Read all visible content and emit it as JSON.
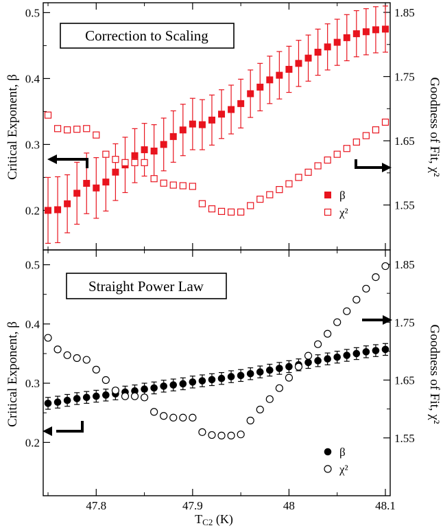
{
  "chart_data": [
    {
      "type": "scatter",
      "title": "Correction to Scaling",
      "xlabel": "",
      "ylabel": "Critical Exponent, β",
      "y2label": "Goodness of Fit, χ²",
      "xlim": [
        47.745,
        48.105
      ],
      "ylim": [
        0.14,
        0.515
      ],
      "y2lim": [
        1.48,
        1.865
      ],
      "yticks": [
        0.2,
        0.3,
        0.4,
        0.5
      ],
      "y2ticks": [
        1.55,
        1.65,
        1.75,
        1.85
      ],
      "y_ticklabels": [
        "0.2",
        "0.3",
        "0.4",
        "0.5"
      ],
      "y2_ticklabels": [
        "1.55",
        "1.65",
        "1.75",
        "1.85"
      ],
      "color": "#e8141e",
      "legend_position": "bottom-right",
      "legend": [
        "β",
        "χ²"
      ],
      "arrows": [
        "left",
        "right"
      ],
      "series": [
        {
          "name": "β",
          "axis": "left",
          "marker": "square-filled",
          "x": [
            47.75,
            47.76,
            47.77,
            47.78,
            47.79,
            47.8,
            47.81,
            47.82,
            47.83,
            47.84,
            47.85,
            47.86,
            47.87,
            47.88,
            47.89,
            47.9,
            47.91,
            47.92,
            47.93,
            47.94,
            47.95,
            47.96,
            47.97,
            47.98,
            47.99,
            48.0,
            48.01,
            48.02,
            48.03,
            48.04,
            48.05,
            48.06,
            48.07,
            48.08,
            48.09,
            48.1
          ],
          "y": [
            0.2,
            0.201,
            0.21,
            0.226,
            0.241,
            0.234,
            0.243,
            0.258,
            0.269,
            0.283,
            0.292,
            0.29,
            0.3,
            0.312,
            0.322,
            0.331,
            0.33,
            0.337,
            0.346,
            0.353,
            0.362,
            0.377,
            0.387,
            0.398,
            0.405,
            0.414,
            0.423,
            0.431,
            0.44,
            0.448,
            0.455,
            0.462,
            0.468,
            0.471,
            0.474,
            0.475
          ],
          "err": [
            0.05,
            0.05,
            0.044,
            0.047,
            0.046,
            0.046,
            0.044,
            0.043,
            0.042,
            0.041,
            0.04,
            0.04,
            0.04,
            0.039,
            0.039,
            0.039,
            0.038,
            0.038,
            0.037,
            0.037,
            0.037,
            0.036,
            0.036,
            0.036,
            0.036,
            0.035,
            0.035,
            0.035,
            0.035,
            0.035,
            0.035,
            0.035,
            0.035,
            0.035,
            0.035,
            0.035
          ]
        },
        {
          "name": "χ²",
          "axis": "right",
          "marker": "square-open",
          "x": [
            47.75,
            47.76,
            47.77,
            47.78,
            47.79,
            47.8,
            47.81,
            47.82,
            47.83,
            47.84,
            47.85,
            47.86,
            47.87,
            47.88,
            47.89,
            47.9,
            47.91,
            47.92,
            47.93,
            47.94,
            47.95,
            47.96,
            47.97,
            47.98,
            47.99,
            48.0,
            48.01,
            48.02,
            48.03,
            48.04,
            48.05,
            48.06,
            48.07,
            48.08,
            48.09,
            48.1
          ],
          "y": [
            1.69,
            1.669,
            1.667,
            1.668,
            1.669,
            1.659,
            1.629,
            1.621,
            1.616,
            1.616,
            1.616,
            1.591,
            1.584,
            1.581,
            1.58,
            1.579,
            1.552,
            1.544,
            1.54,
            1.539,
            1.539,
            1.549,
            1.559,
            1.566,
            1.574,
            1.583,
            1.593,
            1.601,
            1.611,
            1.62,
            1.629,
            1.638,
            1.648,
            1.658,
            1.667,
            1.679
          ]
        }
      ]
    },
    {
      "type": "scatter",
      "title": "Straight Power Law",
      "xlabel": "T_C2 (K)",
      "ylabel": "Critical Exponent, β",
      "y2label": "Goodness of Fit, χ²",
      "xlim": [
        47.745,
        48.105
      ],
      "ylim": [
        0.11,
        0.525
      ],
      "y2lim": [
        1.45,
        1.875
      ],
      "xticks": [
        47.8,
        47.9,
        48.0,
        48.1
      ],
      "x_ticklabels": [
        "47.8",
        "47.9",
        "48",
        "48.1"
      ],
      "yticks": [
        0.2,
        0.3,
        0.4,
        0.5
      ],
      "y2ticks": [
        1.55,
        1.65,
        1.75,
        1.85
      ],
      "y_ticklabels": [
        "0.2",
        "0.3",
        "0.4",
        "0.5"
      ],
      "y2_ticklabels": [
        "1.55",
        "1.65",
        "1.75",
        "1.85"
      ],
      "color": "#000000",
      "legend_position": "bottom-right",
      "legend": [
        "β",
        "χ²"
      ],
      "arrows": [
        "left",
        "right"
      ],
      "series": [
        {
          "name": "β",
          "axis": "left",
          "marker": "circle-filled",
          "x": [
            47.75,
            47.76,
            47.77,
            47.78,
            47.79,
            47.8,
            47.81,
            47.82,
            47.83,
            47.84,
            47.85,
            47.86,
            47.87,
            47.88,
            47.89,
            47.9,
            47.91,
            47.92,
            47.93,
            47.94,
            47.95,
            47.96,
            47.97,
            47.98,
            47.99,
            48.0,
            48.01,
            48.02,
            48.03,
            48.04,
            48.05,
            48.06,
            48.07,
            48.08,
            48.09,
            48.1
          ],
          "y": [
            0.266,
            0.268,
            0.271,
            0.274,
            0.276,
            0.278,
            0.28,
            0.282,
            0.285,
            0.287,
            0.29,
            0.292,
            0.295,
            0.297,
            0.299,
            0.302,
            0.304,
            0.306,
            0.308,
            0.311,
            0.313,
            0.316,
            0.319,
            0.322,
            0.325,
            0.328,
            0.331,
            0.335,
            0.338,
            0.341,
            0.344,
            0.347,
            0.35,
            0.353,
            0.355,
            0.357
          ],
          "err": [
            0.01,
            0.01,
            0.01,
            0.01,
            0.01,
            0.01,
            0.01,
            0.01,
            0.01,
            0.01,
            0.01,
            0.01,
            0.01,
            0.01,
            0.01,
            0.01,
            0.01,
            0.01,
            0.01,
            0.01,
            0.01,
            0.01,
            0.01,
            0.01,
            0.01,
            0.01,
            0.01,
            0.01,
            0.01,
            0.01,
            0.01,
            0.01,
            0.01,
            0.01,
            0.01,
            0.01
          ]
        },
        {
          "name": "χ²",
          "axis": "right",
          "marker": "circle-open",
          "x": [
            47.75,
            47.76,
            47.77,
            47.78,
            47.79,
            47.8,
            47.81,
            47.82,
            47.83,
            47.84,
            47.85,
            47.86,
            47.87,
            47.88,
            47.89,
            47.9,
            47.91,
            47.92,
            47.93,
            47.94,
            47.95,
            47.96,
            47.97,
            47.98,
            47.99,
            48.0,
            48.01,
            48.02,
            48.03,
            48.04,
            48.05,
            48.06,
            48.07,
            48.08,
            48.09,
            48.1
          ],
          "y": [
            1.723,
            1.703,
            1.693,
            1.688,
            1.685,
            1.668,
            1.65,
            1.632,
            1.622,
            1.622,
            1.62,
            1.595,
            1.588,
            1.585,
            1.585,
            1.585,
            1.56,
            1.555,
            1.554,
            1.554,
            1.556,
            1.58,
            1.599,
            1.617,
            1.636,
            1.654,
            1.673,
            1.692,
            1.712,
            1.73,
            1.75,
            1.769,
            1.789,
            1.808,
            1.828,
            1.847
          ]
        }
      ]
    }
  ]
}
